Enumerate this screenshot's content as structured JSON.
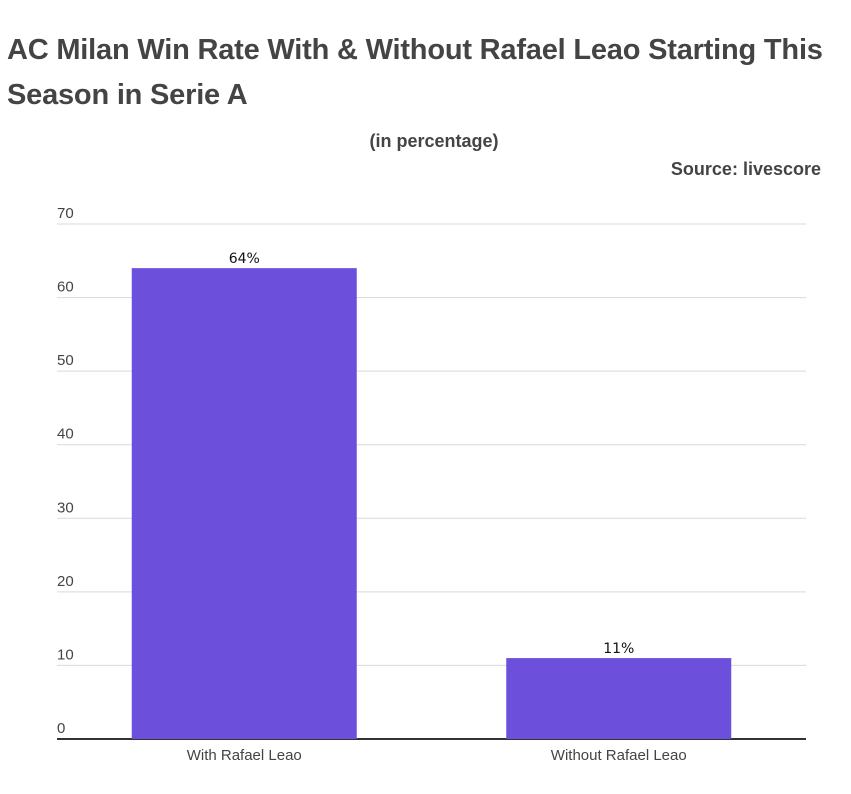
{
  "header": {
    "title": "AC Milan Win Rate With & Without Rafael Leao Starting This Season in Serie A",
    "subtitle": "(in percentage)",
    "source": "Source: livescore"
  },
  "chart_data": {
    "type": "bar",
    "title": "AC Milan Win Rate With & Without Rafael Leao Starting This Season in Serie A",
    "subtitle": "(in percentage)",
    "source": "Source: livescore",
    "categories": [
      "With Rafael Leao",
      "Without Rafael Leao"
    ],
    "values": [
      64,
      11
    ],
    "data_labels": [
      "64%",
      "11%"
    ],
    "xlabel": "",
    "ylabel": "",
    "ylim": [
      0,
      70
    ],
    "yticks": [
      0,
      10,
      20,
      30,
      40,
      50,
      60,
      70
    ],
    "grid": true,
    "legend": "none",
    "colors": {
      "bar": "#6c50dc",
      "grid": "#d9d9d9",
      "axis": "#333333",
      "text": "#444444"
    }
  }
}
